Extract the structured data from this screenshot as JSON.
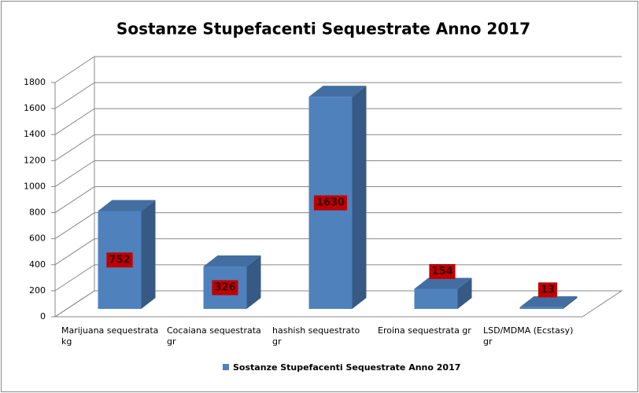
{
  "chart_data": {
    "type": "bar3d",
    "title": "Sostanze Stupefacenti Sequestrate Anno 2017",
    "categories": [
      "Marijuana sequestrata kg",
      "Cocaiana sequestrata gr",
      "hashish sequestrato gr",
      "Eroina sequestrata gr",
      "LSD/MDMA (Ecstasy) gr"
    ],
    "series": [
      {
        "name": "Sostanze Stupefacenti Sequestrate Anno 2017",
        "color": "#4f81bd",
        "values": [
          752,
          326,
          1630,
          154,
          13
        ]
      }
    ],
    "ylim": [
      0,
      1800
    ],
    "yticks": [
      0,
      200,
      400,
      600,
      800,
      1000,
      1200,
      1400,
      1600,
      1800
    ],
    "grid": true,
    "legend": "bottom"
  }
}
